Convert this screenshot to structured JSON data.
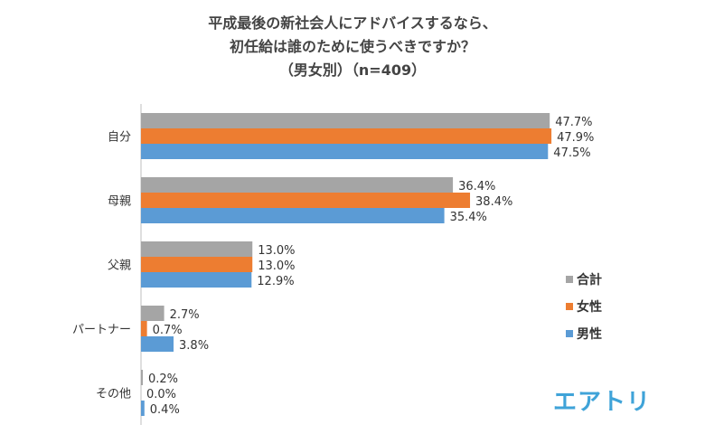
{
  "chart_data": {
    "type": "bar",
    "orientation": "horizontal",
    "title_lines": [
      "平成最後の新社会人にアドバイスするなら、",
      "初任給は誰のために使うべきですか？",
      "（男女別）（n=409）"
    ],
    "categories": [
      "自分",
      "母親",
      "父親",
      "パートナー",
      "その他"
    ],
    "series": [
      {
        "name": "合計",
        "color": "#a5a5a5",
        "values": [
          47.7,
          36.4,
          13.0,
          2.7,
          0.2
        ],
        "labels": [
          "47.7%",
          "36.4%",
          "13.0%",
          "2.7%",
          "0.2%"
        ]
      },
      {
        "name": "女性",
        "color": "#ed7d31",
        "values": [
          47.9,
          38.4,
          13.0,
          0.7,
          0.0
        ],
        "labels": [
          "47.9%",
          "38.4%",
          "13.0%",
          "0.7%",
          "0.0%"
        ]
      },
      {
        "name": "男性",
        "color": "#5b9bd5",
        "values": [
          47.5,
          35.4,
          12.9,
          3.8,
          0.4
        ],
        "labels": [
          "47.5%",
          "35.4%",
          "12.9%",
          "3.8%",
          "0.4%"
        ]
      }
    ],
    "xlabel": "",
    "ylabel": "",
    "xlim": [
      0,
      50
    ],
    "grid": false,
    "legend": "right"
  },
  "logo": "エアトリ",
  "logo_color": "#3fa3d8"
}
